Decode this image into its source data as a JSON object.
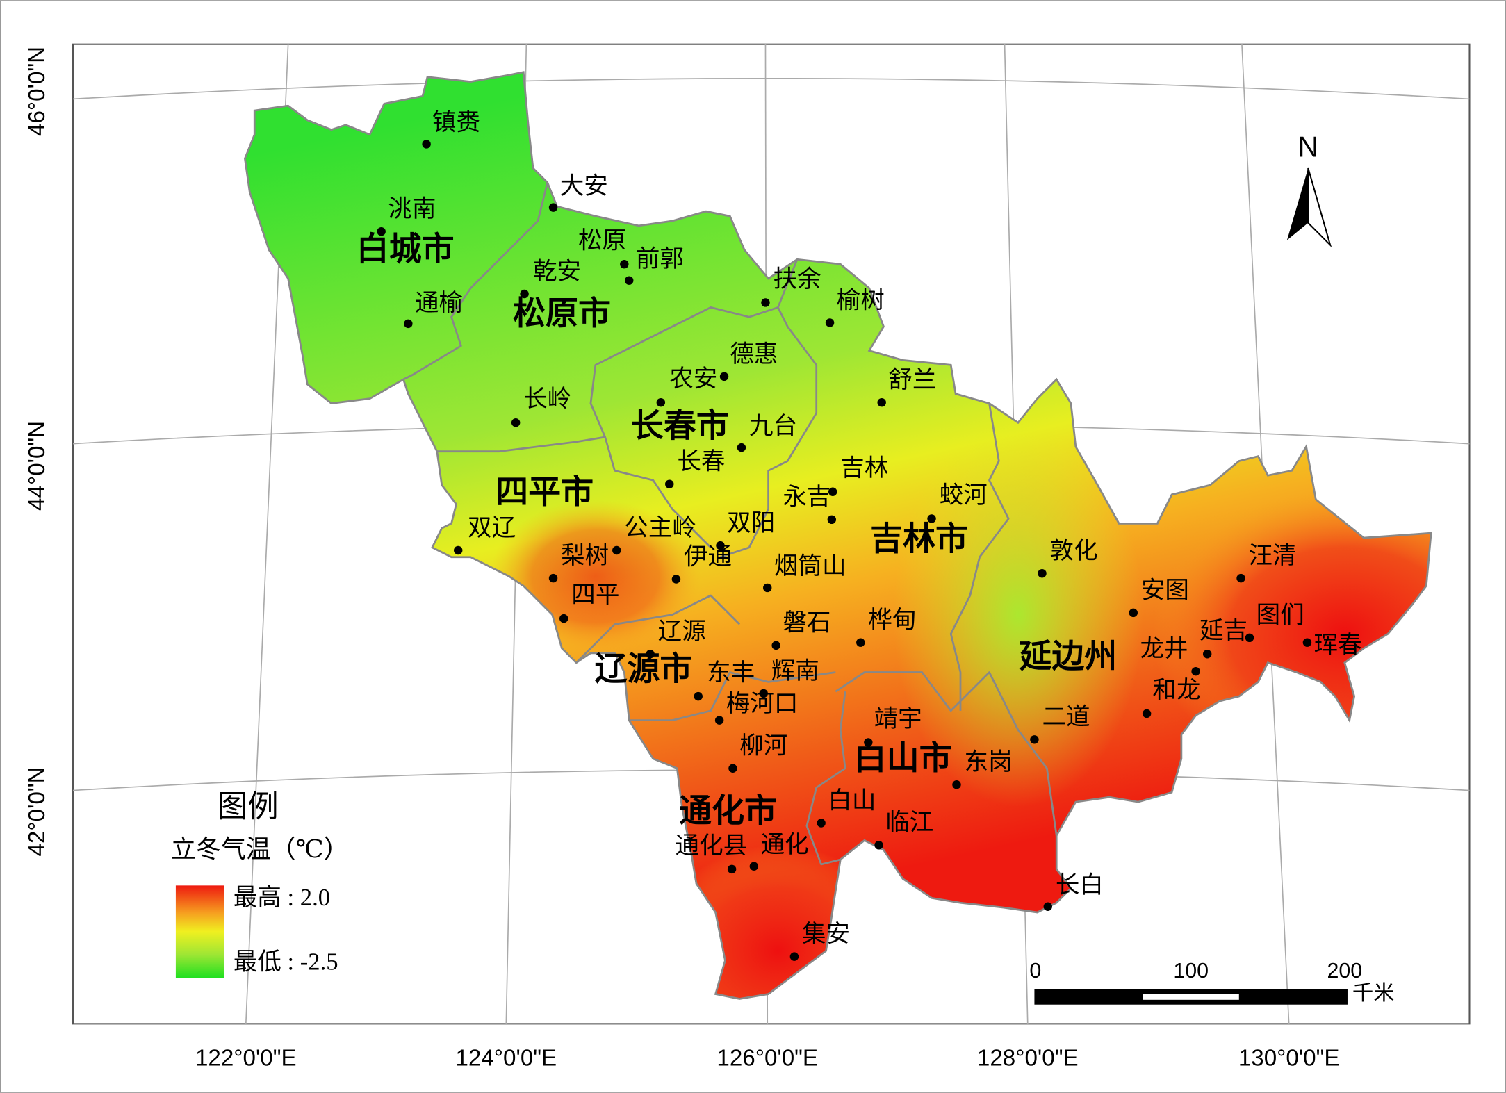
{
  "map": {
    "x_axis_labels": [
      "122°0'0\"E",
      "124°0'0\"E",
      "126°0'0\"E",
      "128°0'0\"E",
      "130°0'0\"E"
    ],
    "y_axis_labels": [
      "46°0'0\"N",
      "44°0'0\"N",
      "42°0'0\"N"
    ],
    "north": "N",
    "regions": [
      "白城市",
      "松原市",
      "长春市",
      "四平市",
      "吉林市",
      "辽源市",
      "通化市",
      "白山市",
      "延边州"
    ],
    "stations": [
      "镇赉",
      "大安",
      "洮南",
      "松原",
      "前郭",
      "乾安",
      "扶余",
      "通榆",
      "榆树",
      "德惠",
      "农安",
      "舒兰",
      "长岭",
      "九台",
      "长春",
      "吉林",
      "永吉",
      "蛟河",
      "双辽",
      "公主岭",
      "双阳",
      "梨树",
      "伊通",
      "烟筒山",
      "敦化",
      "四平",
      "安图",
      "汪清",
      "磐石",
      "桦甸",
      "辽源",
      "图们",
      "延吉",
      "龙井",
      "珲春",
      "东丰",
      "辉南",
      "梅河口",
      "和龙",
      "二道",
      "靖宇",
      "柳河",
      "东岗",
      "白山",
      "临江",
      "通化县",
      "通化",
      "长白",
      "集安"
    ],
    "legend": {
      "title": "图例",
      "subtitle": "立冬气温（℃）",
      "high": "最高 : 2.0",
      "low": "最低 : -2.5"
    },
    "scale_bar": {
      "ticks": [
        "0",
        "100",
        "200"
      ],
      "unit": "千米"
    }
  }
}
